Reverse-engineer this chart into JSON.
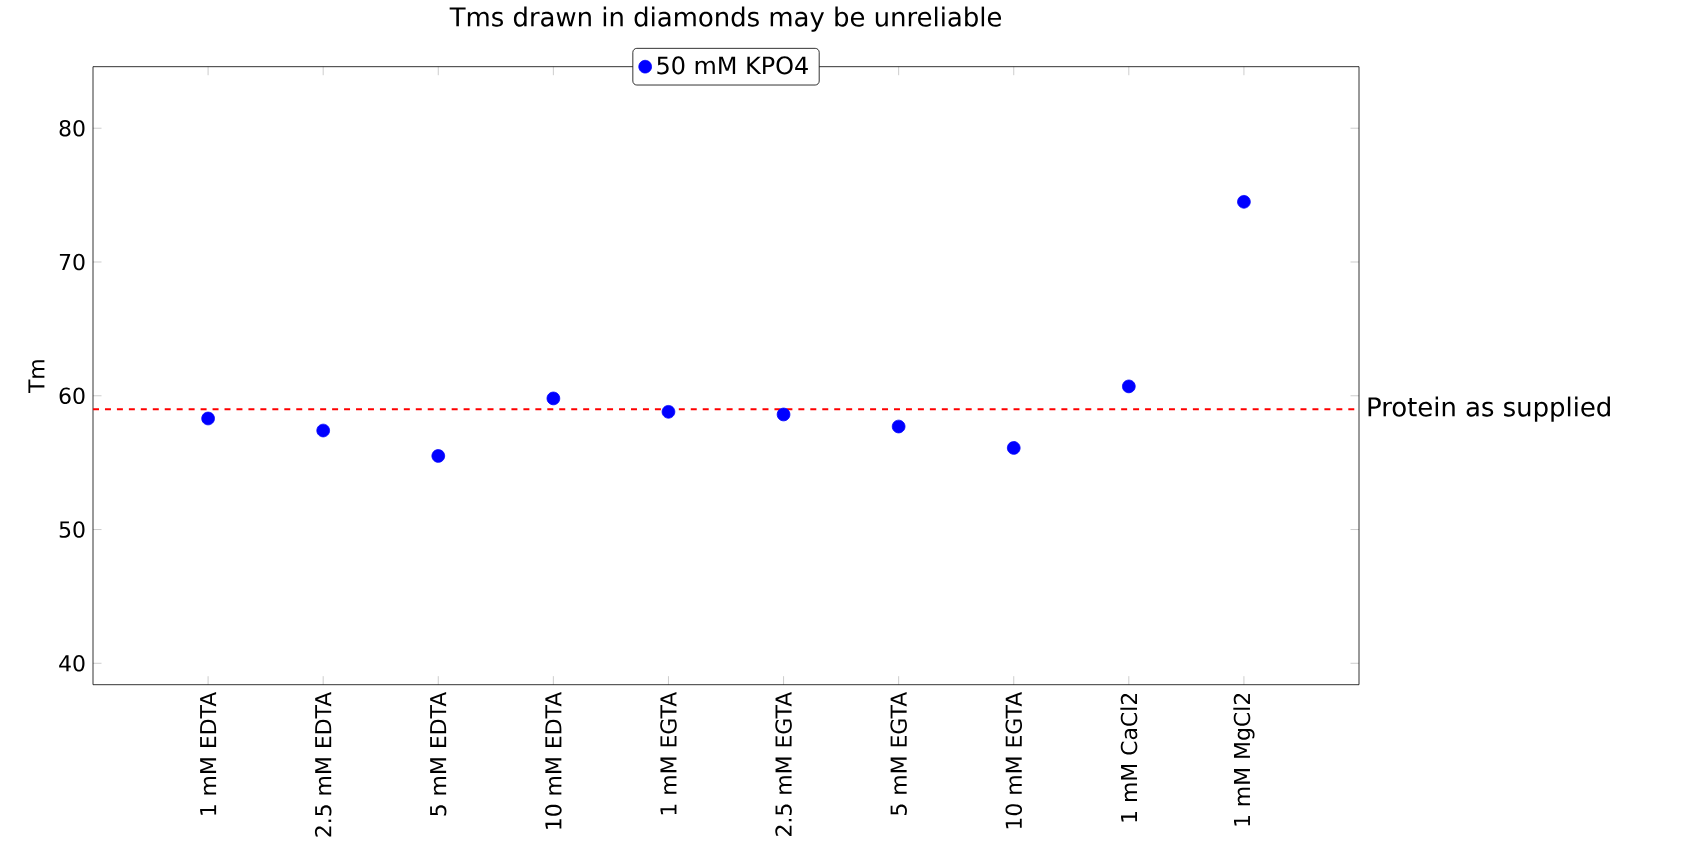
{
  "chart_data": {
    "type": "scatter",
    "title": "Tms drawn in diamonds may be unreliable",
    "ylabel": "Tm",
    "categories": [
      "1 mM EDTA",
      "2.5 mM EDTA",
      "5 mM EDTA",
      "10 mM EDTA",
      "1 mM EGTA",
      "2.5 mM EGTA",
      "5 mM EGTA",
      "10 mM EGTA",
      "1 mM CaCl2",
      "1 mM MgCl2"
    ],
    "series": [
      {
        "name": "50 mM KPO4",
        "color": "#0000ff",
        "values": [
          58.3,
          57.4,
          55.5,
          59.8,
          58.8,
          58.6,
          57.7,
          56.1,
          60.7,
          74.5
        ]
      }
    ],
    "ylim": [
      38.4,
      84.6
    ],
    "yticks": [
      40,
      50,
      60,
      70,
      80
    ],
    "ref_lines": [
      {
        "axis": "y",
        "value": 59.0,
        "label": "Protein as supplied",
        "color": "#ff0000",
        "line_style": "dashed"
      }
    ],
    "legend": "top",
    "marker": "circle",
    "grid": false
  }
}
